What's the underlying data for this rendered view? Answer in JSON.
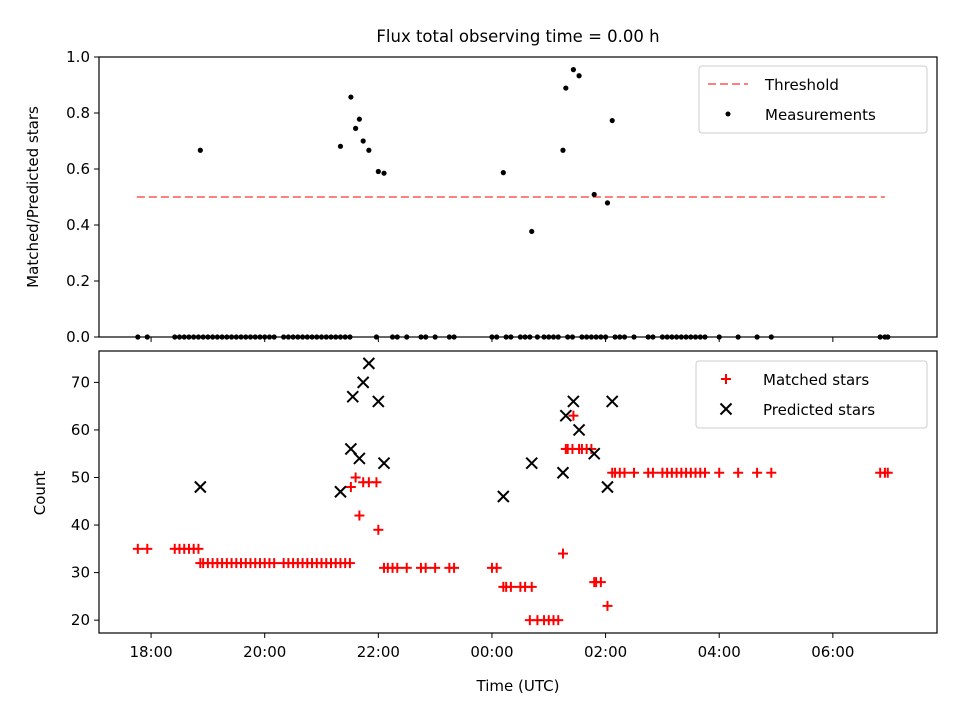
{
  "chart_data": [
    {
      "type": "scatter",
      "title": "Flux total observing time = 0.00 h",
      "xlabel": "",
      "ylabel": "Matched/Predicted stars",
      "xlim": [
        "17:05",
        "07:50"
      ],
      "ylim": [
        0.0,
        1.0
      ],
      "x_ticks": [
        "18:00",
        "20:00",
        "22:00",
        "00:00",
        "02:00",
        "04:00",
        "06:00"
      ],
      "y_ticks": [
        "0.0",
        "0.2",
        "0.4",
        "0.6",
        "0.8",
        "1.0"
      ],
      "legend": {
        "placement": "top-right",
        "entries": [
          "Threshold",
          "Measurements"
        ]
      },
      "threshold": {
        "name": "Threshold",
        "color": "#ff7f7f",
        "style": "dashed",
        "value": 0.5,
        "x_range": [
          "17:45",
          "06:55"
        ]
      },
      "measurements": {
        "name": "Measurements",
        "color": "#000000",
        "points": [
          [
            "17:46",
            0
          ],
          [
            "17:56",
            0
          ],
          [
            "18:25",
            0
          ],
          [
            "18:30",
            0
          ],
          [
            "18:35",
            0
          ],
          [
            "18:40",
            0
          ],
          [
            "18:45",
            0
          ],
          [
            "18:50",
            0
          ],
          [
            "18:52",
            0.667
          ],
          [
            "18:55",
            0
          ],
          [
            "19:00",
            0
          ],
          [
            "19:05",
            0
          ],
          [
            "19:10",
            0
          ],
          [
            "19:15",
            0
          ],
          [
            "19:20",
            0
          ],
          [
            "19:25",
            0
          ],
          [
            "19:30",
            0
          ],
          [
            "19:35",
            0
          ],
          [
            "19:40",
            0
          ],
          [
            "19:45",
            0
          ],
          [
            "19:50",
            0
          ],
          [
            "19:55",
            0
          ],
          [
            "20:00",
            0
          ],
          [
            "20:05",
            0
          ],
          [
            "20:10",
            0
          ],
          [
            "20:20",
            0
          ],
          [
            "20:25",
            0
          ],
          [
            "20:30",
            0
          ],
          [
            "20:35",
            0
          ],
          [
            "20:40",
            0
          ],
          [
            "20:45",
            0
          ],
          [
            "20:50",
            0
          ],
          [
            "20:55",
            0
          ],
          [
            "21:00",
            0
          ],
          [
            "21:05",
            0
          ],
          [
            "21:10",
            0
          ],
          [
            "21:15",
            0
          ],
          [
            "21:20",
            0
          ],
          [
            "21:20",
            0.681
          ],
          [
            "21:25",
            0
          ],
          [
            "21:30",
            0
          ],
          [
            "21:31",
            0.857
          ],
          [
            "21:36",
            0.745
          ],
          [
            "21:40",
            0.778
          ],
          [
            "21:44",
            0.7
          ],
          [
            "21:50",
            0.667
          ],
          [
            "21:58",
            0
          ],
          [
            "22:00",
            0.591
          ],
          [
            "22:06",
            0.585
          ],
          [
            "22:15",
            0
          ],
          [
            "22:20",
            0
          ],
          [
            "22:30",
            0
          ],
          [
            "22:45",
            0
          ],
          [
            "22:50",
            0
          ],
          [
            "23:00",
            0
          ],
          [
            "23:15",
            0
          ],
          [
            "23:20",
            0
          ],
          [
            "00:00",
            0
          ],
          [
            "00:05",
            0
          ],
          [
            "00:12",
            0.587
          ],
          [
            "00:15",
            0
          ],
          [
            "00:20",
            0
          ],
          [
            "00:30",
            0
          ],
          [
            "00:35",
            0
          ],
          [
            "00:40",
            0
          ],
          [
            "00:42",
            0.377
          ],
          [
            "00:48",
            0
          ],
          [
            "00:55",
            0
          ],
          [
            "01:00",
            0
          ],
          [
            "01:05",
            0
          ],
          [
            "01:10",
            0
          ],
          [
            "01:15",
            0.667
          ],
          [
            "01:18",
            0.889
          ],
          [
            "01:20",
            0
          ],
          [
            "01:25",
            0
          ],
          [
            "01:26",
            0.955
          ],
          [
            "01:32",
            0.933
          ],
          [
            "01:35",
            0
          ],
          [
            "01:40",
            0
          ],
          [
            "01:45",
            0
          ],
          [
            "01:48",
            0.509
          ],
          [
            "01:50",
            0
          ],
          [
            "01:55",
            0
          ],
          [
            "02:00",
            0
          ],
          [
            "02:02",
            0.479
          ],
          [
            "02:07",
            0.773
          ],
          [
            "02:10",
            0
          ],
          [
            "02:15",
            0
          ],
          [
            "02:20",
            0
          ],
          [
            "02:30",
            0
          ],
          [
            "02:45",
            0
          ],
          [
            "02:50",
            0
          ],
          [
            "03:00",
            0
          ],
          [
            "03:05",
            0
          ],
          [
            "03:10",
            0
          ],
          [
            "03:15",
            0
          ],
          [
            "03:20",
            0
          ],
          [
            "03:25",
            0
          ],
          [
            "03:30",
            0
          ],
          [
            "03:35",
            0
          ],
          [
            "03:40",
            0
          ],
          [
            "03:45",
            0
          ],
          [
            "04:00",
            0
          ],
          [
            "04:20",
            0
          ],
          [
            "04:40",
            0
          ],
          [
            "04:55",
            0
          ],
          [
            "06:50",
            0
          ],
          [
            "06:55",
            0
          ],
          [
            "06:58",
            0
          ]
        ]
      }
    },
    {
      "type": "scatter",
      "title": "",
      "xlabel": "Time (UTC)",
      "ylabel": "Count",
      "xlim": [
        "17:05",
        "07:50"
      ],
      "ylim": [
        17.3,
        76.6
      ],
      "x_ticks": [
        "18:00",
        "20:00",
        "22:00",
        "00:00",
        "02:00",
        "04:00",
        "06:00"
      ],
      "y_ticks": [
        "20",
        "30",
        "40",
        "50",
        "60",
        "70"
      ],
      "legend": {
        "placement": "top-right",
        "entries": [
          "Matched stars",
          "Predicted stars"
        ]
      },
      "series": [
        {
          "name": "Matched stars",
          "color": "#ff0000",
          "marker": "plus",
          "points": [
            [
              "17:46",
              35
            ],
            [
              "17:56",
              35
            ],
            [
              "18:25",
              35
            ],
            [
              "18:30",
              35
            ],
            [
              "18:35",
              35
            ],
            [
              "18:40",
              35
            ],
            [
              "18:45",
              35
            ],
            [
              "18:50",
              35
            ],
            [
              "18:52",
              32
            ],
            [
              "18:55",
              32
            ],
            [
              "19:00",
              32
            ],
            [
              "19:05",
              32
            ],
            [
              "19:10",
              32
            ],
            [
              "19:15",
              32
            ],
            [
              "19:20",
              32
            ],
            [
              "19:25",
              32
            ],
            [
              "19:30",
              32
            ],
            [
              "19:35",
              32
            ],
            [
              "19:40",
              32
            ],
            [
              "19:45",
              32
            ],
            [
              "19:50",
              32
            ],
            [
              "19:55",
              32
            ],
            [
              "20:00",
              32
            ],
            [
              "20:05",
              32
            ],
            [
              "20:10",
              32
            ],
            [
              "20:20",
              32
            ],
            [
              "20:25",
              32
            ],
            [
              "20:30",
              32
            ],
            [
              "20:35",
              32
            ],
            [
              "20:40",
              32
            ],
            [
              "20:45",
              32
            ],
            [
              "20:50",
              32
            ],
            [
              "20:55",
              32
            ],
            [
              "21:00",
              32
            ],
            [
              "21:05",
              32
            ],
            [
              "21:10",
              32
            ],
            [
              "21:15",
              32
            ],
            [
              "21:20",
              32
            ],
            [
              "21:25",
              32
            ],
            [
              "21:30",
              32
            ],
            [
              "21:31",
              48
            ],
            [
              "21:36",
              50
            ],
            [
              "21:40",
              42
            ],
            [
              "21:44",
              49
            ],
            [
              "21:50",
              49
            ],
            [
              "21:58",
              49
            ],
            [
              "22:00",
              39
            ],
            [
              "22:06",
              31
            ],
            [
              "22:10",
              31
            ],
            [
              "22:15",
              31
            ],
            [
              "22:20",
              31
            ],
            [
              "22:30",
              31
            ],
            [
              "22:45",
              31
            ],
            [
              "22:50",
              31
            ],
            [
              "23:00",
              31
            ],
            [
              "23:15",
              31
            ],
            [
              "23:20",
              31
            ],
            [
              "00:00",
              31
            ],
            [
              "00:05",
              31
            ],
            [
              "00:12",
              27
            ],
            [
              "00:15",
              27
            ],
            [
              "00:20",
              27
            ],
            [
              "00:30",
              27
            ],
            [
              "00:35",
              27
            ],
            [
              "00:40",
              20
            ],
            [
              "00:42",
              27
            ],
            [
              "00:48",
              20
            ],
            [
              "00:55",
              20
            ],
            [
              "01:00",
              20
            ],
            [
              "01:05",
              20
            ],
            [
              "01:10",
              20
            ],
            [
              "01:15",
              34
            ],
            [
              "01:18",
              56
            ],
            [
              "01:20",
              56
            ],
            [
              "01:25",
              56
            ],
            [
              "01:26",
              63
            ],
            [
              "01:32",
              56
            ],
            [
              "01:35",
              56
            ],
            [
              "01:40",
              56
            ],
            [
              "01:45",
              56
            ],
            [
              "01:48",
              28
            ],
            [
              "01:50",
              28
            ],
            [
              "01:55",
              28
            ],
            [
              "02:02",
              23
            ],
            [
              "02:07",
              51
            ],
            [
              "02:10",
              51
            ],
            [
              "02:15",
              51
            ],
            [
              "02:20",
              51
            ],
            [
              "02:30",
              51
            ],
            [
              "02:45",
              51
            ],
            [
              "02:50",
              51
            ],
            [
              "03:00",
              51
            ],
            [
              "03:05",
              51
            ],
            [
              "03:10",
              51
            ],
            [
              "03:15",
              51
            ],
            [
              "03:20",
              51
            ],
            [
              "03:25",
              51
            ],
            [
              "03:30",
              51
            ],
            [
              "03:35",
              51
            ],
            [
              "03:40",
              51
            ],
            [
              "03:45",
              51
            ],
            [
              "04:00",
              51
            ],
            [
              "04:20",
              51
            ],
            [
              "04:40",
              51
            ],
            [
              "04:55",
              51
            ],
            [
              "06:50",
              51
            ],
            [
              "06:55",
              51
            ],
            [
              "06:58",
              51
            ]
          ]
        },
        {
          "name": "Predicted stars",
          "color": "#000000",
          "marker": "x",
          "points": [
            [
              "18:52",
              48
            ],
            [
              "21:20",
              47
            ],
            [
              "21:31",
              56
            ],
            [
              "21:33",
              67
            ],
            [
              "21:40",
              54
            ],
            [
              "21:44",
              70
            ],
            [
              "21:50",
              74
            ],
            [
              "22:00",
              66
            ],
            [
              "22:06",
              53
            ],
            [
              "00:12",
              46
            ],
            [
              "00:42",
              53
            ],
            [
              "01:15",
              51
            ],
            [
              "01:18",
              63
            ],
            [
              "01:26",
              66
            ],
            [
              "01:32",
              60
            ],
            [
              "01:48",
              55
            ],
            [
              "02:02",
              48
            ],
            [
              "02:07",
              66
            ]
          ]
        }
      ]
    }
  ]
}
